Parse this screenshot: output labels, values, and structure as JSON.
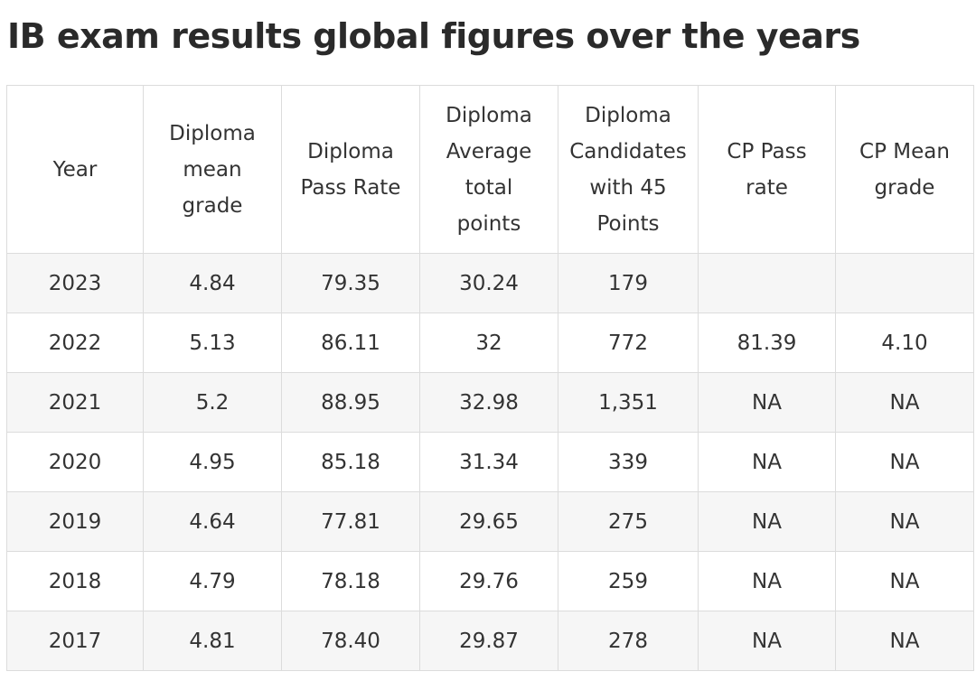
{
  "title": "IB exam results global figures over the years",
  "table": {
    "headers": [
      [
        "Year"
      ],
      [
        "Diploma",
        "mean",
        "grade"
      ],
      [
        "Diploma",
        "Pass Rate"
      ],
      [
        "Diploma",
        "Average",
        "total",
        "points"
      ],
      [
        "Diploma",
        "Candidates",
        "with 45",
        "Points"
      ],
      [
        "CP Pass",
        "rate"
      ],
      [
        "CP Mean",
        "grade"
      ]
    ],
    "rows": [
      [
        "2023",
        "4.84",
        "79.35",
        "30.24",
        "179",
        "",
        ""
      ],
      [
        "2022",
        "5.13",
        "86.11",
        "32",
        "772",
        "81.39",
        "4.10"
      ],
      [
        "2021",
        "5.2",
        "88.95",
        "32.98",
        "1,351",
        "NA",
        "NA"
      ],
      [
        "2020",
        "4.95",
        "85.18",
        "31.34",
        "339",
        "NA",
        "NA"
      ],
      [
        "2019",
        "4.64",
        "77.81",
        "29.65",
        "275",
        "NA",
        "NA"
      ],
      [
        "2018",
        "4.79",
        "78.18",
        "29.76",
        "259",
        "NA",
        "NA"
      ],
      [
        "2017",
        "4.81",
        "78.40",
        "29.87",
        "278",
        "NA",
        "NA"
      ]
    ]
  }
}
